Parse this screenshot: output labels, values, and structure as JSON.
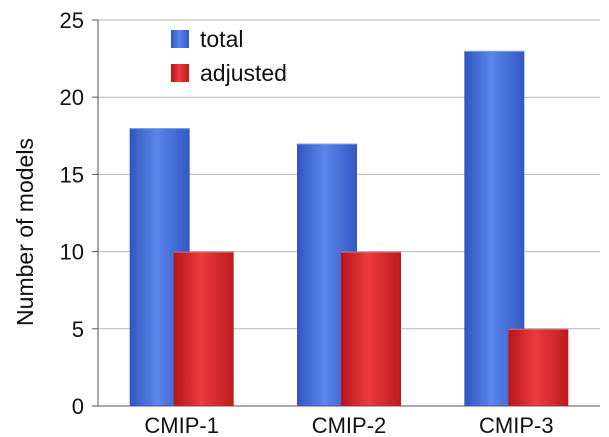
{
  "chart_data": {
    "type": "bar",
    "title": "",
    "xlabel": "",
    "ylabel": "Number of models",
    "categories": [
      "CMIP-1",
      "CMIP-2",
      "CMIP-3"
    ],
    "series": [
      {
        "name": "total",
        "values": [
          18,
          17,
          23
        ],
        "color": "#3f6ad8"
      },
      {
        "name": "adjusted",
        "values": [
          10,
          10,
          5
        ],
        "color": "#d8262a"
      }
    ],
    "ylim": [
      0,
      25
    ],
    "yticks": [
      0,
      5,
      10,
      15,
      20,
      25
    ],
    "grid": true,
    "legend_position": "top-left"
  }
}
